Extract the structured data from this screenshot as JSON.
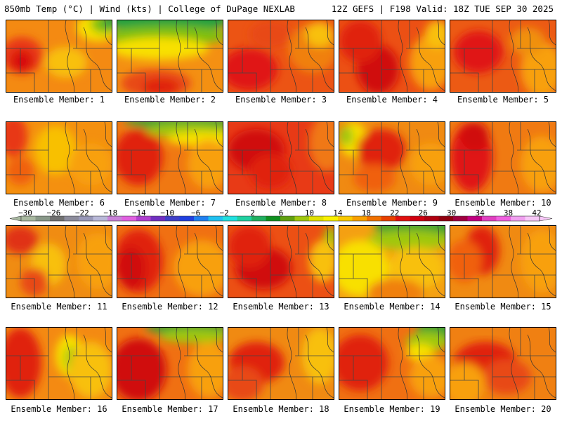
{
  "header": {
    "left": "850mb Temp (°C) | Wind (kts) | College of DuPage NEXLAB",
    "right": "12Z GEFS | F198 Valid: 18Z TUE SEP 30 2025"
  },
  "legend": {
    "ticks": [
      "-30",
      "-26",
      "-22",
      "-18",
      "-14",
      "-10",
      "-6",
      "-2",
      "2",
      "6",
      "10",
      "14",
      "18",
      "22",
      "26",
      "30",
      "34",
      "38",
      "42"
    ],
    "colors": [
      "#a8b8a0",
      "#889888",
      "#707070",
      "#8c8c9c",
      "#9898b8",
      "#b8b8d8",
      "#c880d8",
      "#e060e0",
      "#b040d0",
      "#7030c0",
      "#4040c8",
      "#2040e0",
      "#2080f0",
      "#20c0f0",
      "#20e0e0",
      "#20d0a0",
      "#20b060",
      "#109020",
      "#60a010",
      "#a0c810",
      "#e0e000",
      "#f8f000",
      "#f8c800",
      "#f8a000",
      "#f07000",
      "#e84000",
      "#e01010",
      "#d00010",
      "#b00010",
      "#900010",
      "#a00040",
      "#c00080",
      "#e040c0",
      "#f060e0",
      "#f0a0f0",
      "#f8c8f8"
    ]
  },
  "panels": [
    {
      "label": "Ensemble Member: 1",
      "base": "#f48a12",
      "blobs": [
        [
          "#e83818",
          22,
          50,
          30,
          26
        ],
        [
          "#d81010",
          22,
          58,
          16,
          16
        ],
        [
          "#f8c010",
          85,
          60,
          30,
          22
        ],
        [
          "#f8e000",
          130,
          10,
          30,
          20
        ],
        [
          "#7cc010",
          140,
          5,
          20,
          14
        ],
        [
          "#20a040",
          148,
          2,
          10,
          10
        ]
      ]
    },
    {
      "label": "Ensemble Member: 2",
      "base": "#f49012",
      "blobs": [
        [
          "#20a040",
          70,
          0,
          90,
          18
        ],
        [
          "#80c010",
          70,
          22,
          90,
          14
        ],
        [
          "#f8e000",
          60,
          40,
          70,
          16
        ],
        [
          "#e84818",
          55,
          90,
          50,
          20
        ],
        [
          "#e02010",
          62,
          95,
          26,
          12
        ]
      ]
    },
    {
      "label": "Ensemble Member: 3",
      "base": "#ec5414",
      "blobs": [
        [
          "#e01818",
          30,
          70,
          40,
          30
        ],
        [
          "#f08010",
          120,
          40,
          35,
          35
        ],
        [
          "#f8c010",
          130,
          20,
          20,
          18
        ],
        [
          "#e84818",
          60,
          20,
          30,
          20
        ]
      ]
    },
    {
      "label": "Ensemble Member: 4",
      "base": "#ec5014",
      "blobs": [
        [
          "#d00a0a",
          55,
          70,
          30,
          35
        ],
        [
          "#e02010",
          30,
          30,
          30,
          30
        ],
        [
          "#f8a010",
          130,
          60,
          30,
          40
        ],
        [
          "#f8c010",
          140,
          20,
          18,
          20
        ]
      ]
    },
    {
      "label": "Ensemble Member: 5",
      "base": "#ec5a14",
      "blobs": [
        [
          "#e01818",
          40,
          45,
          35,
          30
        ],
        [
          "#f8a010",
          130,
          70,
          30,
          40
        ],
        [
          "#f09010",
          110,
          30,
          25,
          20
        ]
      ]
    },
    {
      "label": "Ensemble Member: 6",
      "base": "#f4900f",
      "blobs": [
        [
          "#e83818",
          10,
          20,
          20,
          30
        ],
        [
          "#f8c000",
          70,
          40,
          30,
          35
        ],
        [
          "#f8a010",
          120,
          60,
          30,
          30
        ],
        [
          "#f06010",
          20,
          70,
          20,
          20
        ]
      ]
    },
    {
      "label": "Ensemble Member: 7",
      "base": "#f07812",
      "blobs": [
        [
          "#e02010",
          30,
          50,
          35,
          40
        ],
        [
          "#40a030",
          90,
          0,
          80,
          10
        ],
        [
          "#a0c810",
          100,
          12,
          60,
          10
        ],
        [
          "#f8e000",
          120,
          24,
          50,
          10
        ],
        [
          "#f8a010",
          130,
          60,
          30,
          35
        ]
      ]
    },
    {
      "label": "Ensemble Member: 8",
      "base": "#e83a16",
      "blobs": [
        [
          "#d01010",
          40,
          40,
          40,
          30
        ],
        [
          "#e02010",
          60,
          70,
          30,
          25
        ],
        [
          "#f07812",
          140,
          30,
          25,
          40
        ]
      ]
    },
    {
      "label": "Ensemble Member: 9",
      "base": "#f08a12",
      "blobs": [
        [
          "#f8e000",
          20,
          25,
          20,
          25
        ],
        [
          "#a0c810",
          10,
          20,
          10,
          14
        ],
        [
          "#e02010",
          60,
          40,
          35,
          30
        ],
        [
          "#f06010",
          50,
          80,
          30,
          20
        ],
        [
          "#f8a010",
          130,
          60,
          30,
          30
        ]
      ]
    },
    {
      "label": "Ensemble Member: 10",
      "base": "#f07a12",
      "blobs": [
        [
          "#e01818",
          30,
          50,
          30,
          50
        ],
        [
          "#d00a0a",
          35,
          20,
          20,
          20
        ],
        [
          "#f8a010",
          130,
          60,
          30,
          40
        ]
      ]
    },
    {
      "label": "Ensemble Member: 11",
      "base": "#f08c12",
      "blobs": [
        [
          "#e03018",
          20,
          20,
          25,
          20
        ],
        [
          "#f8c010",
          60,
          55,
          25,
          30
        ],
        [
          "#e84818",
          40,
          80,
          20,
          20
        ],
        [
          "#f8a010",
          130,
          50,
          30,
          40
        ]
      ]
    },
    {
      "label": "Ensemble Member: 12",
      "base": "#f07012",
      "blobs": [
        [
          "#e02010",
          30,
          50,
          35,
          45
        ],
        [
          "#d01010",
          20,
          60,
          20,
          30
        ],
        [
          "#f8a010",
          120,
          60,
          40,
          40
        ]
      ]
    },
    {
      "label": "Ensemble Member: 13",
      "base": "#ec5014",
      "blobs": [
        [
          "#d01010",
          50,
          60,
          40,
          30
        ],
        [
          "#e02010",
          30,
          30,
          30,
          30
        ],
        [
          "#a0c810",
          145,
          25,
          10,
          25
        ],
        [
          "#f8c010",
          135,
          50,
          20,
          30
        ]
      ]
    },
    {
      "label": "Ensemble Member: 14",
      "base": "#f4a012",
      "blobs": [
        [
          "#40a030",
          110,
          0,
          60,
          20
        ],
        [
          "#a0c810",
          100,
          20,
          60,
          14
        ],
        [
          "#f8e000",
          30,
          60,
          40,
          40
        ],
        [
          "#f8c010",
          110,
          60,
          40,
          30
        ],
        [
          "#f08010",
          80,
          95,
          40,
          20
        ]
      ]
    },
    {
      "label": "Ensemble Member: 15",
      "base": "#f08a12",
      "blobs": [
        [
          "#e02010",
          45,
          35,
          25,
          35
        ],
        [
          "#f06010",
          20,
          50,
          25,
          30
        ],
        [
          "#f8a010",
          130,
          50,
          30,
          45
        ]
      ]
    },
    {
      "label": "Ensemble Member: 16",
      "base": "#f48a12",
      "blobs": [
        [
          "#e02010",
          20,
          50,
          30,
          50
        ],
        [
          "#f8e000",
          90,
          40,
          20,
          30
        ],
        [
          "#a0c810",
          92,
          45,
          10,
          18
        ],
        [
          "#f8c010",
          120,
          60,
          30,
          40
        ]
      ]
    },
    {
      "label": "Ensemble Member: 17",
      "base": "#f07012",
      "blobs": [
        [
          "#d01010",
          30,
          60,
          40,
          45
        ],
        [
          "#40a030",
          100,
          0,
          60,
          10
        ],
        [
          "#a0c810",
          110,
          12,
          50,
          10
        ],
        [
          "#f8a010",
          130,
          60,
          30,
          40
        ]
      ]
    },
    {
      "label": "Ensemble Member: 18",
      "base": "#f08a12",
      "blobs": [
        [
          "#e02010",
          40,
          50,
          40,
          30
        ],
        [
          "#e84818",
          20,
          80,
          30,
          25
        ],
        [
          "#f8c010",
          130,
          40,
          25,
          40
        ]
      ]
    },
    {
      "label": "Ensemble Member: 19",
      "base": "#f07012",
      "blobs": [
        [
          "#e02010",
          30,
          50,
          40,
          40
        ],
        [
          "#40a030",
          140,
          5,
          30,
          20
        ],
        [
          "#a0c810",
          125,
          20,
          30,
          14
        ],
        [
          "#f8e000",
          115,
          35,
          20,
          12
        ],
        [
          "#f8a010",
          130,
          70,
          30,
          30
        ]
      ]
    },
    {
      "label": "Ensemble Member: 20",
      "base": "#f08012",
      "blobs": [
        [
          "#e02010",
          50,
          50,
          45,
          30
        ],
        [
          "#e84818",
          80,
          70,
          35,
          25
        ],
        [
          "#f8a010",
          20,
          80,
          30,
          30
        ]
      ]
    }
  ]
}
